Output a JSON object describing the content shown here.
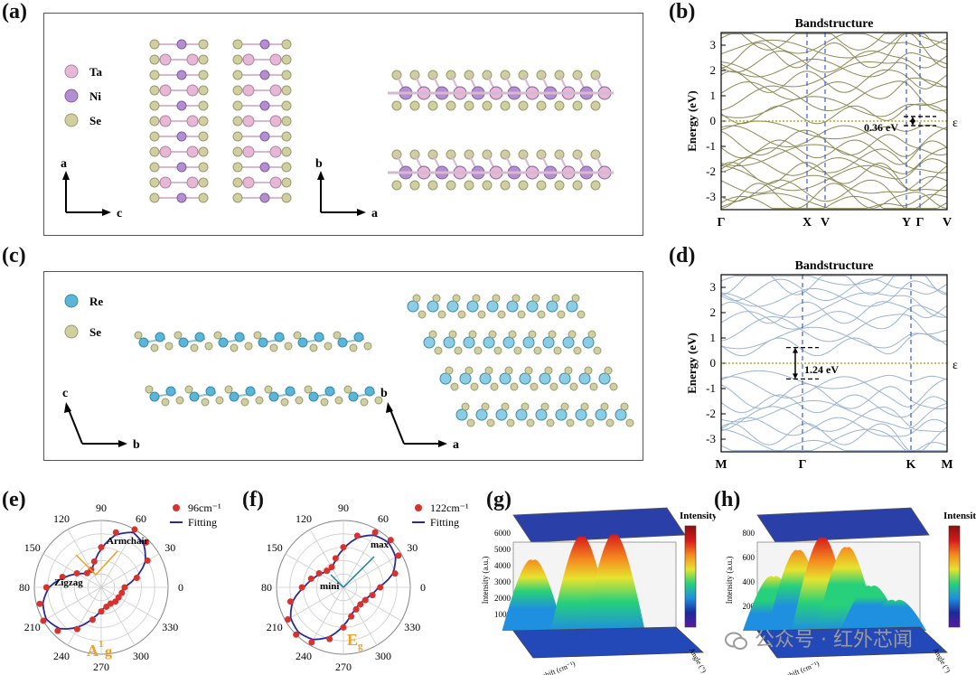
{
  "panel_labels": [
    "(a)",
    "(b)",
    "(c)",
    "(d)",
    "(e)",
    "(f)",
    "(g)",
    "(h)"
  ],
  "panel_a": {
    "legend": [
      {
        "label": "Ta",
        "color": "#e6b8d6"
      },
      {
        "label": "Ni",
        "color": "#b38fd0"
      },
      {
        "label": "Se",
        "color": "#cfcfa0"
      }
    ],
    "axes_left": {
      "vertical": "a",
      "horizontal": "c"
    },
    "axes_right": {
      "vertical": "b",
      "horizontal": "a"
    }
  },
  "panel_c": {
    "legend": [
      {
        "label": "Re",
        "color": "#5bb5d6"
      },
      {
        "label": "Se",
        "color": "#cfcfa0"
      }
    ],
    "axes_left": {
      "vertical": "c",
      "horizontal": "b"
    },
    "axes_right": {
      "vertical": "b",
      "horizontal": "a"
    }
  },
  "panel_e_labels": {
    "a1g": "A",
    "a1g_sup": "1",
    "a1g_sub": "g",
    "armchair": "Armchair",
    "zigzag": "Zigzag"
  },
  "panel_f_labels": {
    "eg": "E",
    "eg_sub": "g",
    "max": "max",
    "mini": "mini"
  },
  "panel_g_axes": {
    "z": "Intensity (a.u.)",
    "x": "Raman shift (cm⁻¹)",
    "y": "Angle (°)",
    "colorbar": "Intensity"
  },
  "panel_h_axes": {
    "z": "Intensity (a.u.)",
    "x": "Raman shift (cm⁻¹)",
    "y": "Angle (°)",
    "colorbar": "Intensity"
  },
  "watermark": "公众号 · 红外芯闻",
  "colors": {
    "band_b": "#8a8a55",
    "band_d": "#9bb3d1",
    "kline": "#3b5bd6",
    "fermi": "#a0a000",
    "polar_dot": "#d8322d",
    "polar_fit": "#2a2a9a",
    "a1g_label": "#f0a020"
  },
  "chart_data": [
    {
      "id": "b",
      "type": "line",
      "title": "Bandstructure",
      "xlabel": "",
      "ylabel": "Energy (eV)",
      "ylim": [
        -3.5,
        3.5
      ],
      "yticks": [
        -3,
        -2,
        -1,
        0,
        1,
        2,
        3
      ],
      "kpoint_labels": [
        "Γ",
        "X",
        "V",
        "Y",
        "Γ",
        "V"
      ],
      "kpoint_positions": [
        0,
        0.38,
        0.46,
        0.82,
        0.88,
        1.0
      ],
      "fermi_label": "ε",
      "fermi_sub": "F",
      "gap_label": "0.36 eV",
      "gap": 0.36,
      "band_seeds": {
        "valence": [
          -0.35,
          -0.6,
          -0.85,
          -1.1,
          -1.35,
          -1.55,
          -1.8,
          -2.05,
          -2.25,
          -2.5,
          -2.75,
          -2.95,
          -3.2,
          -3.4
        ],
        "conduction": [
          0.25,
          0.55,
          0.9,
          1.2,
          1.55,
          1.85,
          2.1,
          2.35,
          2.6,
          2.85,
          3.1,
          3.3
        ]
      }
    },
    {
      "id": "d",
      "type": "line",
      "title": "Bandstructure",
      "xlabel": "",
      "ylabel": "Energy (eV)",
      "ylim": [
        -3.5,
        3.5
      ],
      "yticks": [
        -3,
        -2,
        -1,
        0,
        1,
        2,
        3
      ],
      "kpoint_labels": [
        "M",
        "Γ",
        "K",
        "M"
      ],
      "kpoint_positions": [
        0,
        0.36,
        0.84,
        1.0
      ],
      "fermi_label": "ε",
      "fermi_sub": "F",
      "gap_label": "1.24 eV",
      "gap": 1.24,
      "band_seeds": {
        "valence": [
          -0.65,
          -0.95,
          -1.3,
          -1.6,
          -1.9,
          -2.2,
          -2.5,
          -2.8,
          -3.1,
          -3.4
        ],
        "conduction": [
          0.65,
          1.0,
          1.35,
          1.7,
          2.0,
          2.3,
          2.6,
          2.9,
          3.2,
          3.45
        ]
      }
    },
    {
      "id": "e",
      "type": "scatter",
      "polar": true,
      "angle_ticks": [
        90,
        60,
        30,
        0,
        330,
        300,
        270,
        240,
        210,
        180,
        150,
        120
      ],
      "series": [
        {
          "name": "96cm⁻¹",
          "kind": "points",
          "angles": [
            0,
            15,
            30,
            45,
            60,
            75,
            90,
            105,
            120,
            135,
            150,
            165,
            180,
            195,
            210,
            225,
            240,
            255,
            270,
            285,
            300,
            315,
            330,
            345
          ],
          "r": [
            0.35,
            0.55,
            0.8,
            0.95,
            1.0,
            0.85,
            0.6,
            0.4,
            0.3,
            0.3,
            0.42,
            0.6,
            0.82,
            0.95,
            1.0,
            0.92,
            0.72,
            0.5,
            0.36,
            0.3,
            0.28,
            0.3,
            0.3,
            0.32
          ]
        },
        {
          "name": "Fitting",
          "kind": "line"
        }
      ]
    },
    {
      "id": "f",
      "type": "scatter",
      "polar": true,
      "angle_ticks": [
        90,
        60,
        30,
        0,
        330,
        300,
        270,
        240,
        210,
        180,
        150,
        120
      ],
      "series": [
        {
          "name": "122cm⁻¹",
          "kind": "points",
          "angles": [
            0,
            15,
            30,
            45,
            60,
            75,
            90,
            105,
            120,
            135,
            150,
            165,
            180,
            195,
            210,
            225,
            240,
            255,
            270,
            285,
            300,
            315,
            330,
            345
          ],
          "r": [
            0.55,
            0.8,
            0.95,
            1.0,
            0.95,
            0.8,
            0.6,
            0.45,
            0.35,
            0.35,
            0.42,
            0.5,
            0.62,
            0.82,
            0.96,
            1.0,
            0.95,
            0.8,
            0.6,
            0.45,
            0.38,
            0.36,
            0.38,
            0.45
          ]
        },
        {
          "name": "Fitting",
          "kind": "line"
        }
      ]
    },
    {
      "id": "g",
      "type": "area",
      "zlabel": "Intensity (a.u.)",
      "xlabel": "Raman shift (cm⁻¹)",
      "ylabel": "Angle (°)",
      "zticks": [
        1000,
        2000,
        3000,
        4000,
        5000,
        6000
      ],
      "peaks": [
        {
          "position": 0.12,
          "height": 0.72
        },
        {
          "position": 0.42,
          "height": 0.96
        },
        {
          "position": 0.62,
          "height": 0.98
        }
      ]
    },
    {
      "id": "h",
      "type": "area",
      "zlabel": "Intensity (a.u.)",
      "xlabel": "Raman shift (cm⁻¹)",
      "ylabel": "Angle (°)",
      "zticks": [
        200,
        400,
        600,
        800
      ],
      "peaks": [
        {
          "position": 0.1,
          "height": 0.55
        },
        {
          "position": 0.25,
          "height": 0.82
        },
        {
          "position": 0.4,
          "height": 0.95
        },
        {
          "position": 0.55,
          "height": 0.85
        },
        {
          "position": 0.7,
          "height": 0.45
        },
        {
          "position": 0.85,
          "height": 0.3
        }
      ]
    }
  ]
}
